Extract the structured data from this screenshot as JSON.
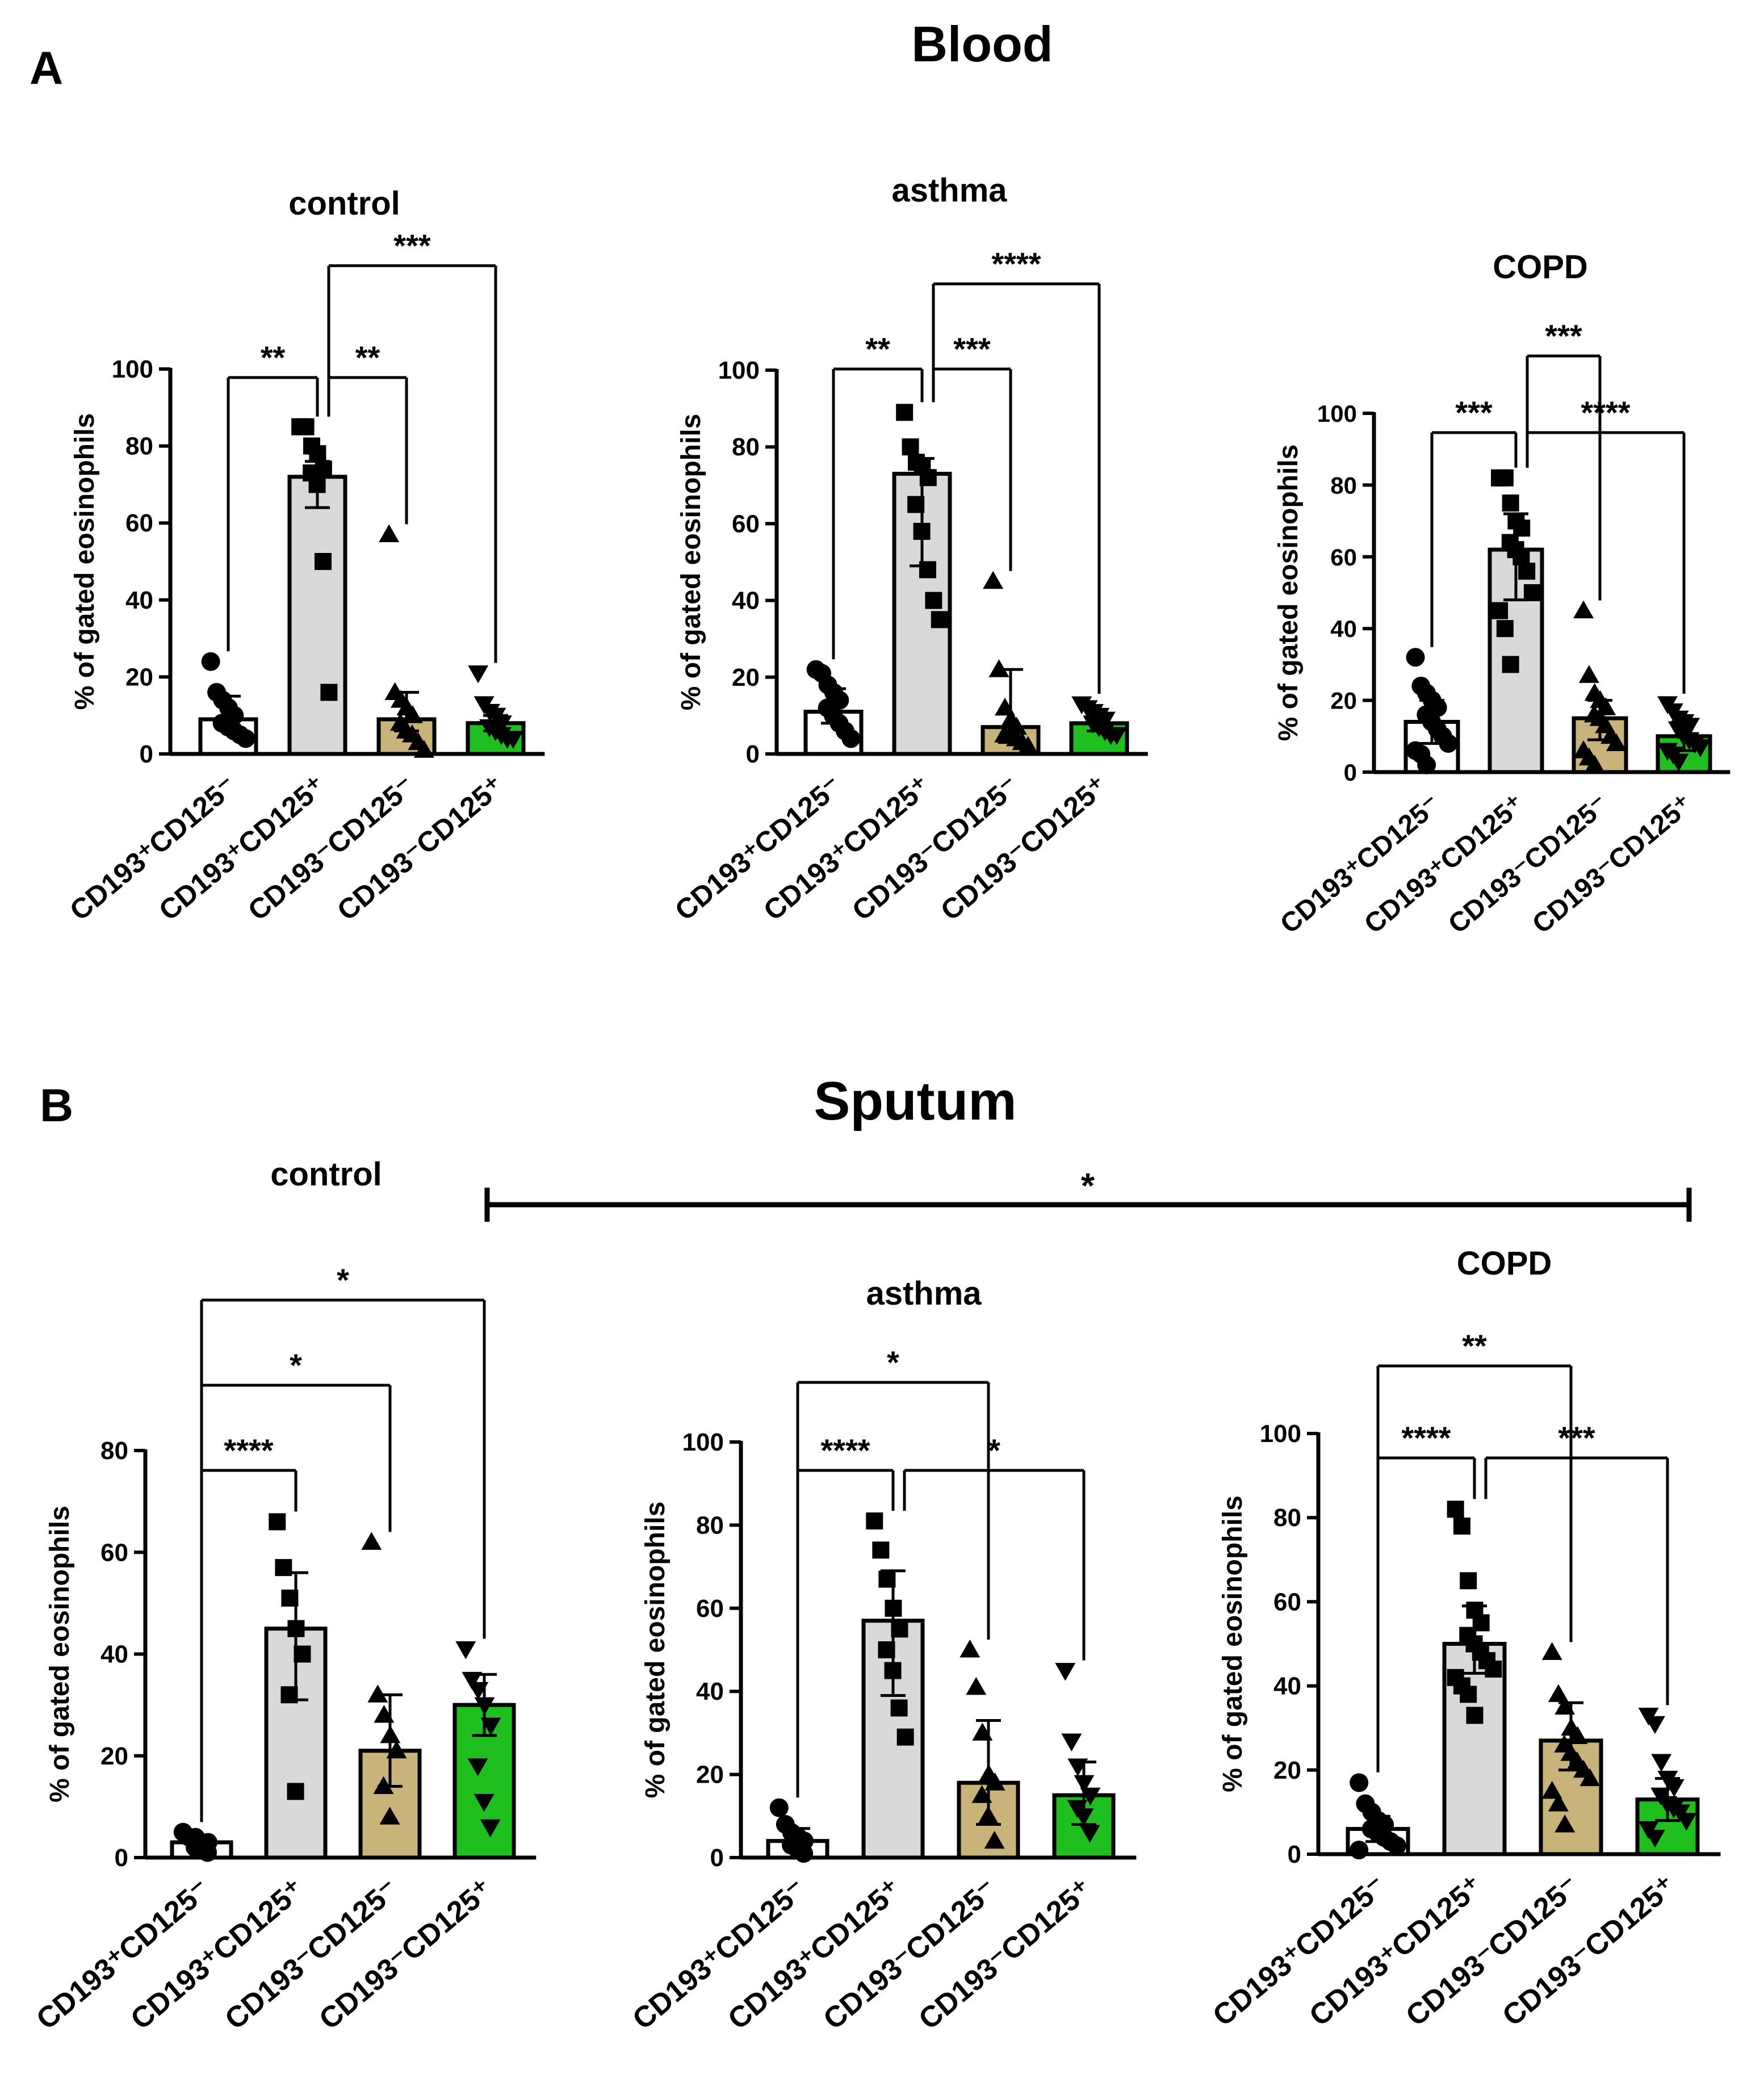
{
  "figure": {
    "panel_a_label": "A",
    "panel_a_title": "Blood",
    "panel_b_label": "B",
    "panel_b_title": "Sputum",
    "ylabel": "% of gated eosinophils",
    "cross_panel_sig": "*"
  },
  "colors": {
    "pos_neg": "#ffffff",
    "pos_pos": "#d9d9d9",
    "neg_neg": "#c8b47a",
    "neg_pos": "#1fbf1f",
    "ink": "#000000"
  },
  "chart_data": [
    {
      "id": "blood-control",
      "type": "bar",
      "title": "control",
      "ylabel": "% of gated eosinophils",
      "ylim": [
        0,
        100
      ],
      "yticks": [
        0,
        20,
        40,
        60,
        80,
        100
      ],
      "categories": [
        "CD193⁺CD125⁻",
        "CD193⁺CD125⁺",
        "CD193⁻CD125⁻",
        "CD193⁻CD125⁺"
      ],
      "marker": [
        "circle",
        "square",
        "triangle",
        "triangle-down"
      ],
      "values": [
        9,
        72,
        9,
        8
      ],
      "sd_low": [
        7,
        64,
        6,
        6
      ],
      "sd_high": [
        15,
        76,
        16,
        10
      ],
      "points": [
        [
          24,
          16,
          14,
          12,
          10,
          8,
          7,
          6,
          5,
          4
        ],
        [
          85,
          85,
          80,
          78,
          74,
          73,
          70,
          50,
          16
        ],
        [
          57,
          16,
          14,
          12,
          10,
          8,
          6,
          5,
          3,
          1
        ],
        [
          21,
          13,
          11,
          10,
          8,
          7,
          6,
          5,
          4,
          4
        ]
      ],
      "sig": [
        {
          "from": 0,
          "to": 1,
          "label": "**",
          "level": 0
        },
        {
          "from": 1,
          "to": 2,
          "label": "**",
          "level": 0
        },
        {
          "from": 1,
          "to": 3,
          "label": "***",
          "level": 1
        }
      ]
    },
    {
      "id": "blood-asthma",
      "type": "bar",
      "title": "asthma",
      "ylabel": "% of gated eosinophils",
      "ylim": [
        0,
        100
      ],
      "yticks": [
        0,
        20,
        40,
        60,
        80,
        100
      ],
      "categories": [
        "CD193⁺CD125⁻",
        "CD193⁺CD125⁺",
        "CD193⁻CD125⁻",
        "CD193⁻CD125⁺"
      ],
      "marker": [
        "circle",
        "square",
        "triangle",
        "triangle-down"
      ],
      "values": [
        11,
        73,
        7,
        8
      ],
      "sd_low": [
        8,
        49,
        3,
        6
      ],
      "sd_high": [
        17,
        77,
        22,
        10
      ],
      "points": [
        [
          22,
          21,
          18,
          16,
          14,
          12,
          10,
          8,
          6,
          4
        ],
        [
          89,
          80,
          76,
          75,
          72,
          65,
          58,
          48,
          40,
          35
        ],
        [
          45,
          22,
          12,
          9,
          7,
          5,
          5,
          4,
          3,
          2
        ],
        [
          13,
          12,
          11,
          10,
          9,
          8,
          7,
          6,
          5,
          5
        ]
      ],
      "sig": [
        {
          "from": 0,
          "to": 1,
          "label": "**",
          "level": 0
        },
        {
          "from": 1,
          "to": 2,
          "label": "***",
          "level": 0
        },
        {
          "from": 1,
          "to": 3,
          "label": "****",
          "level": 1
        }
      ]
    },
    {
      "id": "blood-copd",
      "type": "bar",
      "title": "COPD",
      "ylabel": "% of gated eosinophils",
      "ylim": [
        0,
        100
      ],
      "yticks": [
        0,
        20,
        40,
        60,
        80,
        100
      ],
      "categories": [
        "CD193⁺CD125⁻",
        "CD193⁺CD125⁺",
        "CD193⁻CD125⁻",
        "CD193⁻CD125⁺"
      ],
      "marker": [
        "circle",
        "square",
        "triangle",
        "triangle-down"
      ],
      "values": [
        14,
        62,
        15,
        10
      ],
      "sd_low": [
        8,
        48,
        9,
        6
      ],
      "sd_high": [
        20,
        72,
        20,
        14
      ],
      "points": [
        [
          32,
          24,
          22,
          20,
          18,
          16,
          14,
          12,
          10,
          8,
          6,
          5,
          2
        ],
        [
          82,
          82,
          75,
          70,
          68,
          64,
          62,
          60,
          56,
          50,
          45,
          40,
          30
        ],
        [
          45,
          27,
          22,
          20,
          18,
          16,
          15,
          13,
          10,
          8,
          6,
          4,
          2
        ],
        [
          19,
          17,
          15,
          14,
          13,
          12,
          10,
          9,
          8,
          7,
          6,
          5,
          3
        ]
      ],
      "sig": [
        {
          "from": 0,
          "to": 1,
          "label": "***",
          "level": 0
        },
        {
          "from": 1,
          "to": 3,
          "label": "****",
          "level": 0
        },
        {
          "from": 1,
          "to": 2,
          "label": "***",
          "level": 1
        }
      ]
    },
    {
      "id": "sputum-control",
      "type": "bar",
      "title": "control",
      "ylabel": "% of gated eosinophils",
      "ylim": [
        0,
        80
      ],
      "yticks": [
        0,
        20,
        40,
        60,
        80
      ],
      "categories": [
        "CD193⁺CD125⁻",
        "CD193⁺CD125⁺",
        "CD193⁻CD125⁻",
        "CD193⁻CD125⁺"
      ],
      "marker": [
        "circle",
        "square",
        "triangle",
        "triangle-down"
      ],
      "values": [
        3,
        45,
        21,
        30
      ],
      "sd_low": [
        2,
        31,
        14,
        24
      ],
      "sd_high": [
        4,
        56,
        32,
        36
      ],
      "points": [
        [
          5,
          4,
          4,
          3,
          3,
          2,
          2,
          1
        ],
        [
          66,
          57,
          51,
          45,
          40,
          32,
          13
        ],
        [
          62,
          32,
          28,
          24,
          21,
          14,
          8
        ],
        [
          41,
          35,
          33,
          30,
          26,
          18,
          11,
          6
        ]
      ],
      "sig": [
        {
          "from": 0,
          "to": 1,
          "label": "****",
          "level": 0
        },
        {
          "from": 0,
          "to": 2,
          "label": "*",
          "level": 1
        },
        {
          "from": 0,
          "to": 3,
          "label": "*",
          "level": 2
        }
      ]
    },
    {
      "id": "sputum-asthma",
      "type": "bar",
      "title": "asthma",
      "ylabel": "% of gated eosinophils",
      "ylim": [
        0,
        100
      ],
      "yticks": [
        0,
        20,
        40,
        60,
        80,
        100
      ],
      "categories": [
        "CD193⁺CD125⁻",
        "CD193⁺CD125⁺",
        "CD193⁻CD125⁻",
        "CD193⁻CD125⁺"
      ],
      "marker": [
        "circle",
        "square",
        "triangle",
        "triangle-down"
      ],
      "values": [
        4,
        57,
        18,
        15
      ],
      "sd_low": [
        2,
        39,
        8,
        8
      ],
      "sd_high": [
        7,
        69,
        33,
        23
      ],
      "points": [
        [
          12,
          8,
          6,
          5,
          4,
          3,
          2,
          1
        ],
        [
          81,
          74,
          67,
          60,
          55,
          50,
          45,
          36,
          29
        ],
        [
          50,
          41,
          30,
          20,
          18,
          15,
          10,
          4
        ],
        [
          45,
          28,
          22,
          18,
          15,
          12,
          10,
          6
        ]
      ],
      "sig": [
        {
          "from": 0,
          "to": 1,
          "label": "****",
          "level": 0
        },
        {
          "from": 1,
          "to": 3,
          "label": "*",
          "level": 0
        },
        {
          "from": 0,
          "to": 2,
          "label": "*",
          "level": 1
        }
      ]
    },
    {
      "id": "sputum-copd",
      "type": "bar",
      "title": "COPD",
      "ylabel": "% of gated eosinophils",
      "ylim": [
        0,
        100
      ],
      "yticks": [
        0,
        20,
        40,
        60,
        80,
        100
      ],
      "categories": [
        "CD193⁺CD125⁻",
        "CD193⁺CD125⁺",
        "CD193⁻CD125⁻",
        "CD193⁻CD125⁺"
      ],
      "marker": [
        "circle",
        "square",
        "triangle",
        "triangle-down"
      ],
      "values": [
        6,
        50,
        27,
        13
      ],
      "sd_low": [
        3,
        43,
        20,
        8
      ],
      "sd_high": [
        9,
        59,
        36,
        18
      ],
      "points": [
        [
          17,
          12,
          10,
          8,
          7,
          6,
          5,
          4,
          3,
          2,
          1
        ],
        [
          82,
          78,
          65,
          58,
          55,
          52,
          50,
          48,
          46,
          44,
          42,
          40,
          38,
          33
        ],
        [
          48,
          38,
          35,
          30,
          28,
          26,
          24,
          22,
          20,
          18,
          15,
          12,
          7
        ],
        [
          33,
          31,
          22,
          18,
          16,
          14,
          12,
          11,
          10,
          8,
          6,
          4
        ]
      ],
      "sig": [
        {
          "from": 0,
          "to": 1,
          "label": "****",
          "level": 0
        },
        {
          "from": 1,
          "to": 3,
          "label": "***",
          "level": 0
        },
        {
          "from": 0,
          "to": 2,
          "label": "**",
          "level": 1
        }
      ]
    }
  ]
}
